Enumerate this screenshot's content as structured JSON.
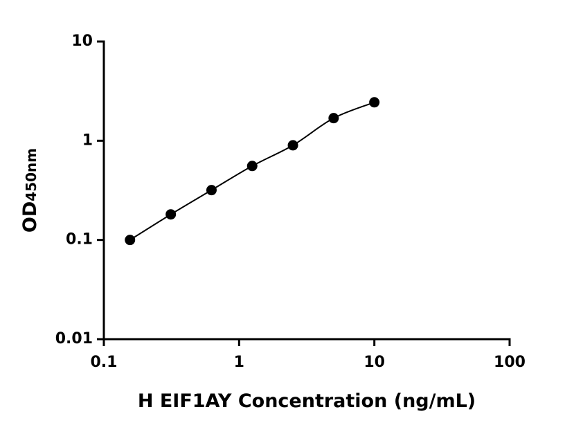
{
  "chart_data": {
    "type": "scatter",
    "x_label": "H EIF1AY Concentration (ng/mL)",
    "y_label": "OD",
    "y_label_subscript": "450nm",
    "x": [
      0.156,
      0.3125,
      0.625,
      1.25,
      2.5,
      5,
      10
    ],
    "series": [
      {
        "color": "#000000",
        "values": [
          0.1,
          0.181,
          0.318,
          0.557,
          0.9,
          1.69,
          2.44
        ]
      }
    ],
    "xlim": [
      0.1,
      100
    ],
    "xticks": [
      0.1,
      1,
      10,
      100
    ],
    "ylim": [
      0.01,
      10
    ],
    "yticks": [
      0.01,
      0.1,
      1,
      10
    ],
    "xscale": "log",
    "yscale": "log",
    "fit_curve": true
  }
}
